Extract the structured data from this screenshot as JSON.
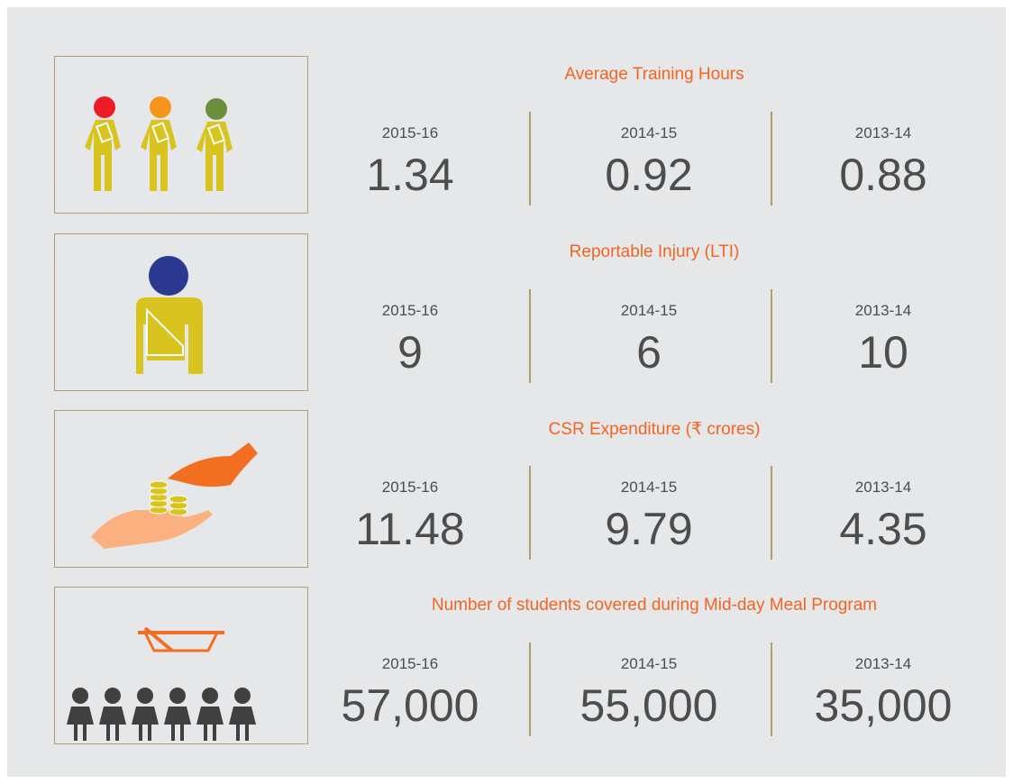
{
  "sections": [
    {
      "title": "Average Training Hours",
      "items": [
        {
          "year": "2015-16",
          "value": "1.34"
        },
        {
          "year": "2014-15",
          "value": "0.92"
        },
        {
          "year": "2013-14",
          "value": "0.88"
        }
      ]
    },
    {
      "title": "Reportable Injury (LTI)",
      "items": [
        {
          "year": "2015-16",
          "value": "9"
        },
        {
          "year": "2014-15",
          "value": "6"
        },
        {
          "year": "2013-14",
          "value": "10"
        }
      ]
    },
    {
      "title": "CSR Expenditure (₹ crores)",
      "items": [
        {
          "year": "2015-16",
          "value": "11.48"
        },
        {
          "year": "2014-15",
          "value": "9.79"
        },
        {
          "year": "2013-14",
          "value": "4.35"
        }
      ]
    },
    {
      "title": "Number of students covered during Mid-day Meal Program",
      "items": [
        {
          "year": "2015-16",
          "value": "57,000"
        },
        {
          "year": "2014-15",
          "value": "55,000"
        },
        {
          "year": "2013-14",
          "value": "35,000"
        }
      ]
    }
  ]
}
